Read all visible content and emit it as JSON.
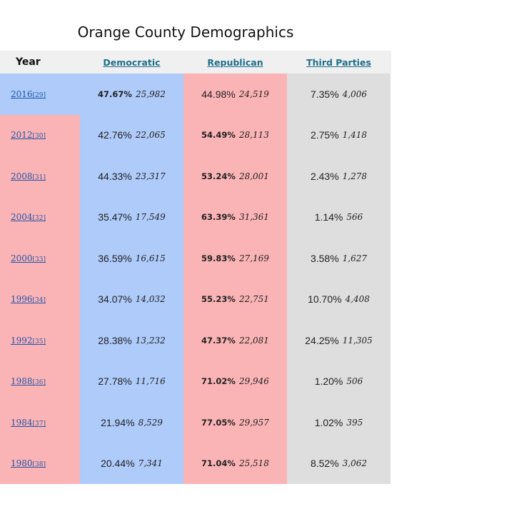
{
  "title": "Orange County Demographics",
  "colors": {
    "democratic": "#aecbfa",
    "republican": "#fbb4b6",
    "third": "#dedede",
    "header": "#f0f0f0"
  },
  "chart_data": {
    "type": "table",
    "title": "Orange County Demographics",
    "columns": [
      "Year",
      "Democratic",
      "Republican",
      "Third Parties"
    ],
    "rows": [
      {
        "year": "2016",
        "ref": "[29]",
        "winner": "democratic",
        "dem_pct": "47.67%",
        "dem_votes": "25,982",
        "rep_pct": "44.98%",
        "rep_votes": "24,519",
        "third_pct": "7.35%",
        "third_votes": "4,006"
      },
      {
        "year": "2012",
        "ref": "[30]",
        "winner": "republican",
        "dem_pct": "42.76%",
        "dem_votes": "22,065",
        "rep_pct": "54.49%",
        "rep_votes": "28,113",
        "third_pct": "2.75%",
        "third_votes": "1,418"
      },
      {
        "year": "2008",
        "ref": "[31]",
        "winner": "republican",
        "dem_pct": "44.33%",
        "dem_votes": "23,317",
        "rep_pct": "53.24%",
        "rep_votes": "28,001",
        "third_pct": "2.43%",
        "third_votes": "1,278"
      },
      {
        "year": "2004",
        "ref": "[32]",
        "winner": "republican",
        "dem_pct": "35.47%",
        "dem_votes": "17,549",
        "rep_pct": "63.39%",
        "rep_votes": "31,361",
        "third_pct": "1.14%",
        "third_votes": "566"
      },
      {
        "year": "2000",
        "ref": "[33]",
        "winner": "republican",
        "dem_pct": "36.59%",
        "dem_votes": "16,615",
        "rep_pct": "59.83%",
        "rep_votes": "27,169",
        "third_pct": "3.58%",
        "third_votes": "1,627"
      },
      {
        "year": "1996",
        "ref": "[34]",
        "winner": "republican",
        "dem_pct": "34.07%",
        "dem_votes": "14,032",
        "rep_pct": "55.23%",
        "rep_votes": "22,751",
        "third_pct": "10.70%",
        "third_votes": "4,408"
      },
      {
        "year": "1992",
        "ref": "[35]",
        "winner": "republican",
        "dem_pct": "28.38%",
        "dem_votes": "13,232",
        "rep_pct": "47.37%",
        "rep_votes": "22,081",
        "third_pct": "24.25%",
        "third_votes": "11,305"
      },
      {
        "year": "1988",
        "ref": "[36]",
        "winner": "republican",
        "dem_pct": "27.78%",
        "dem_votes": "11,716",
        "rep_pct": "71.02%",
        "rep_votes": "29,946",
        "third_pct": "1.20%",
        "third_votes": "506"
      },
      {
        "year": "1984",
        "ref": "[37]",
        "winner": "republican",
        "dem_pct": "21.94%",
        "dem_votes": "8,529",
        "rep_pct": "77.05%",
        "rep_votes": "29,957",
        "third_pct": "1.02%",
        "third_votes": "395"
      },
      {
        "year": "1980",
        "ref": "[38]",
        "winner": "republican",
        "dem_pct": "20.44%",
        "dem_votes": "7,341",
        "rep_pct": "71.04%",
        "rep_votes": "25,518",
        "third_pct": "8.52%",
        "third_votes": "3,062"
      }
    ]
  }
}
